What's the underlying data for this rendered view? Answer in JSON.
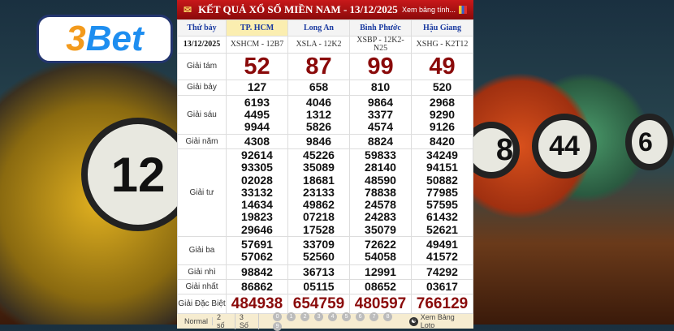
{
  "logo": {
    "brand_a": "3",
    "brand_b": "Bet"
  },
  "balls": [
    "12",
    "8",
    "44",
    "6"
  ],
  "header": {
    "title": "KẾT QUẢ XỔ SỐ MIỀN NAM - 13/12/2025",
    "more_link": "Xem bảng tính..."
  },
  "day": "Thứ bảy",
  "date": "13/12/2025",
  "provinces": [
    {
      "name": "TP. HCM",
      "code": "XSHCM - 12B7"
    },
    {
      "name": "Long An",
      "code": "XSLA - 12K2"
    },
    {
      "name": "Bình Phước",
      "code": "XSBP - 12K2-N25"
    },
    {
      "name": "Hậu Giang",
      "code": "XSHG - K2T12"
    }
  ],
  "prizes": [
    {
      "label": "Giải tám",
      "values": [
        [
          "52"
        ],
        [
          "87"
        ],
        [
          "99"
        ],
        [
          "49"
        ]
      ]
    },
    {
      "label": "Giải bảy",
      "values": [
        [
          "127"
        ],
        [
          "658"
        ],
        [
          "810"
        ],
        [
          "520"
        ]
      ]
    },
    {
      "label": "Giải sáu",
      "values": [
        [
          "6193",
          "4495",
          "9944"
        ],
        [
          "4046",
          "1312",
          "5826"
        ],
        [
          "9864",
          "3377",
          "4574"
        ],
        [
          "2968",
          "9290",
          "9126"
        ]
      ]
    },
    {
      "label": "Giải năm",
      "values": [
        [
          "4308"
        ],
        [
          "9846"
        ],
        [
          "8824"
        ],
        [
          "8420"
        ]
      ]
    },
    {
      "label": "Giải tư",
      "values": [
        [
          "92614",
          "93305",
          "02028",
          "33132",
          "14634",
          "19823",
          "29646"
        ],
        [
          "45226",
          "35089",
          "18681",
          "23133",
          "49862",
          "07218",
          "17528"
        ],
        [
          "59833",
          "28140",
          "48590",
          "78838",
          "24578",
          "24283",
          "35079"
        ],
        [
          "34249",
          "94151",
          "50882",
          "77985",
          "57595",
          "61432",
          "52621"
        ]
      ]
    },
    {
      "label": "Giải ba",
      "values": [
        [
          "57691",
          "57062"
        ],
        [
          "33709",
          "52560"
        ],
        [
          "72622",
          "54058"
        ],
        [
          "49491",
          "41572"
        ]
      ]
    },
    {
      "label": "Giải nhì",
      "values": [
        [
          "98842"
        ],
        [
          "36713"
        ],
        [
          "12991"
        ],
        [
          "74292"
        ]
      ]
    },
    {
      "label": "Giải nhất",
      "values": [
        [
          "86862"
        ],
        [
          "05115"
        ],
        [
          "08652"
        ],
        [
          "03617"
        ]
      ]
    },
    {
      "label": "Giải Đặc Biệt",
      "values": [
        [
          "484938"
        ],
        [
          "654759"
        ],
        [
          "480597"
        ],
        [
          "766129"
        ]
      ]
    }
  ],
  "footer": {
    "modes": [
      "Normal",
      "2 số",
      "3 Số"
    ],
    "digits": [
      "0",
      "1",
      "2",
      "3",
      "4",
      "5",
      "6",
      "7",
      "8",
      "9"
    ],
    "loto_link": "Xem Bảng Loto"
  }
}
